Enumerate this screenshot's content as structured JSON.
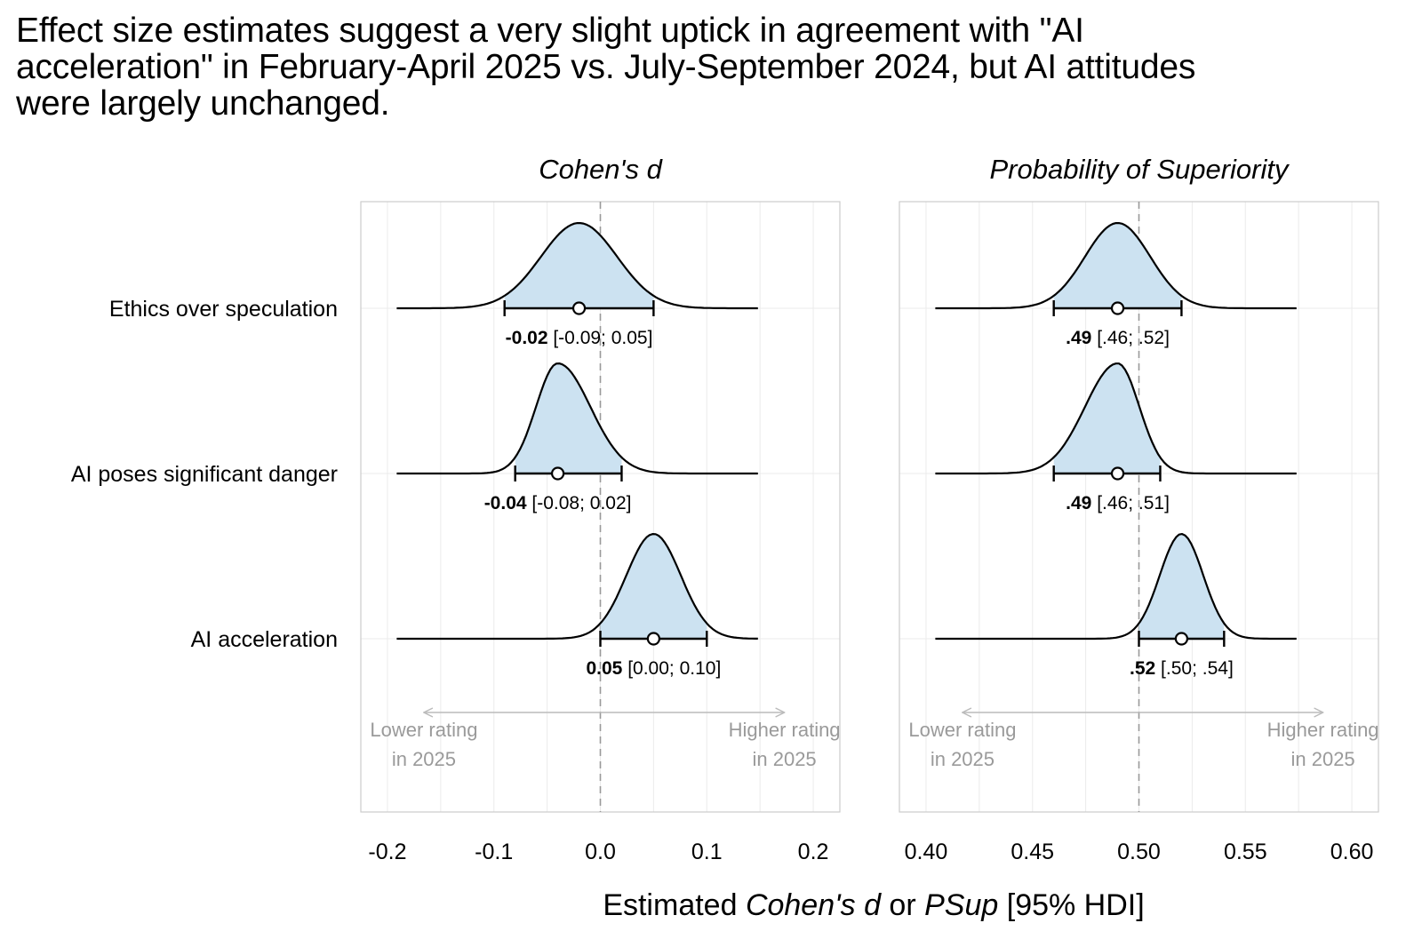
{
  "title_lines": [
    "Effect size estimates suggest a very slight uptick in agreement with \"AI",
    "acceleration\" in February-April 2025 vs. July-September 2024, but AI attitudes",
    "were largely unchanged."
  ],
  "xlabel": {
    "pre": "Estimated ",
    "it1": "Cohen's d",
    "mid": " or ",
    "it2": "PSup",
    "post": " [95% HDI]"
  },
  "colors": {
    "fill": "#cce2f1",
    "line": "#000000",
    "grid": "#ebebeb",
    "panel_border": "#cccccc",
    "reference": "#999999",
    "direction_text": "#9a9a9a"
  },
  "chart_data": [
    {
      "type": "density-interval",
      "title": "Cohen's d",
      "xlim": [
        -0.225,
        0.225
      ],
      "xticks": [
        -0.2,
        -0.1,
        0.0,
        0.1,
        0.2
      ],
      "tick_labels": [
        "-0.2",
        "-0.1",
        "0.0",
        "0.1",
        "0.2"
      ],
      "reference_line": 0.0,
      "rows": [
        {
          "label": "Ethics over speculation",
          "estimate": -0.02,
          "lower": -0.09,
          "upper": 0.05,
          "est_label": "-0.02",
          "ci_label": "[-0.09; 0.05]"
        },
        {
          "label": "AI poses significant danger",
          "estimate": -0.04,
          "lower": -0.08,
          "upper": 0.02,
          "est_label": "-0.04",
          "ci_label": "[-0.08; 0.02]"
        },
        {
          "label": "AI acceleration",
          "estimate": 0.05,
          "lower": 0.0,
          "upper": 0.1,
          "est_label": "0.05",
          "ci_label": "[0.00; 0.10]"
        }
      ],
      "direction_labels": {
        "left": [
          "Lower rating",
          "in 2025"
        ],
        "right": [
          "Higher rating",
          "in 2025"
        ]
      }
    },
    {
      "type": "density-interval",
      "title": "Probability of Superiority",
      "xlim": [
        0.3875,
        0.6125
      ],
      "xticks": [
        0.4,
        0.45,
        0.5,
        0.55,
        0.6
      ],
      "tick_labels": [
        "0.40",
        "0.45",
        "0.50",
        "0.55",
        "0.60"
      ],
      "reference_line": 0.5,
      "rows": [
        {
          "label": "Ethics over speculation",
          "estimate": 0.49,
          "lower": 0.46,
          "upper": 0.52,
          "est_label": ".49",
          "ci_label": "[.46; .52]"
        },
        {
          "label": "AI poses significant danger",
          "estimate": 0.49,
          "lower": 0.46,
          "upper": 0.51,
          "est_label": ".49",
          "ci_label": "[.46; .51]"
        },
        {
          "label": "AI acceleration",
          "estimate": 0.52,
          "lower": 0.5,
          "upper": 0.54,
          "est_label": ".52",
          "ci_label": "[.50; .54]"
        }
      ],
      "direction_labels": {
        "left": [
          "Lower rating",
          "in 2025"
        ],
        "right": [
          "Higher rating",
          "in 2025"
        ]
      }
    }
  ]
}
